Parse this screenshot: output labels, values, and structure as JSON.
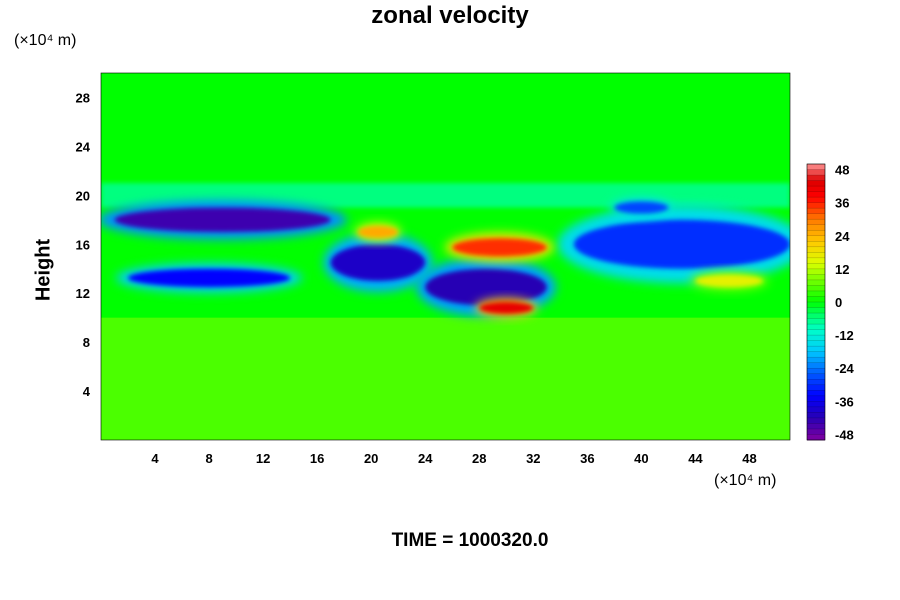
{
  "chart_data": {
    "type": "heatmap",
    "title": "zonal velocity",
    "xlabel": "",
    "ylabel": "Height",
    "x_unit": "(×10⁴ m)",
    "y_unit": "(×10⁴ m)",
    "xlim": [
      0,
      51
    ],
    "ylim": [
      0,
      30
    ],
    "x_ticks": [
      4,
      8,
      12,
      16,
      20,
      24,
      28,
      32,
      36,
      40,
      44,
      48
    ],
    "y_ticks": [
      4,
      8,
      12,
      16,
      20,
      24,
      28
    ],
    "colorbar": {
      "min": -50,
      "max": 50,
      "ticks": [
        48,
        36,
        24,
        12,
        0,
        -12,
        -24,
        -36,
        -48
      ]
    },
    "footer": "TIME = 1000320.0",
    "features": [
      {
        "x0": 1,
        "x1": 17,
        "y0": 17,
        "y1": 19,
        "value": -44
      },
      {
        "x0": 2,
        "x1": 14,
        "y0": 12.5,
        "y1": 14,
        "value": -34
      },
      {
        "x0": 17,
        "x1": 24,
        "y0": 13,
        "y1": 16,
        "value": -40
      },
      {
        "x0": 24,
        "x1": 33,
        "y0": 11,
        "y1": 14,
        "value": -42
      },
      {
        "x0": 35,
        "x1": 51,
        "y0": 14,
        "y1": 18,
        "value": -30
      },
      {
        "x0": 38,
        "x1": 42,
        "y0": 18.5,
        "y1": 19.5,
        "value": -28
      },
      {
        "x0": 26,
        "x1": 33,
        "y0": 15,
        "y1": 16.5,
        "value": 35
      },
      {
        "x0": 28,
        "x1": 32,
        "y0": 10.3,
        "y1": 11.3,
        "value": 42
      },
      {
        "x0": 19,
        "x1": 22,
        "y0": 16.5,
        "y1": 17.5,
        "value": 25
      },
      {
        "x0": 44,
        "x1": 49,
        "y0": 12.5,
        "y1": 13.5,
        "value": 16
      }
    ]
  }
}
